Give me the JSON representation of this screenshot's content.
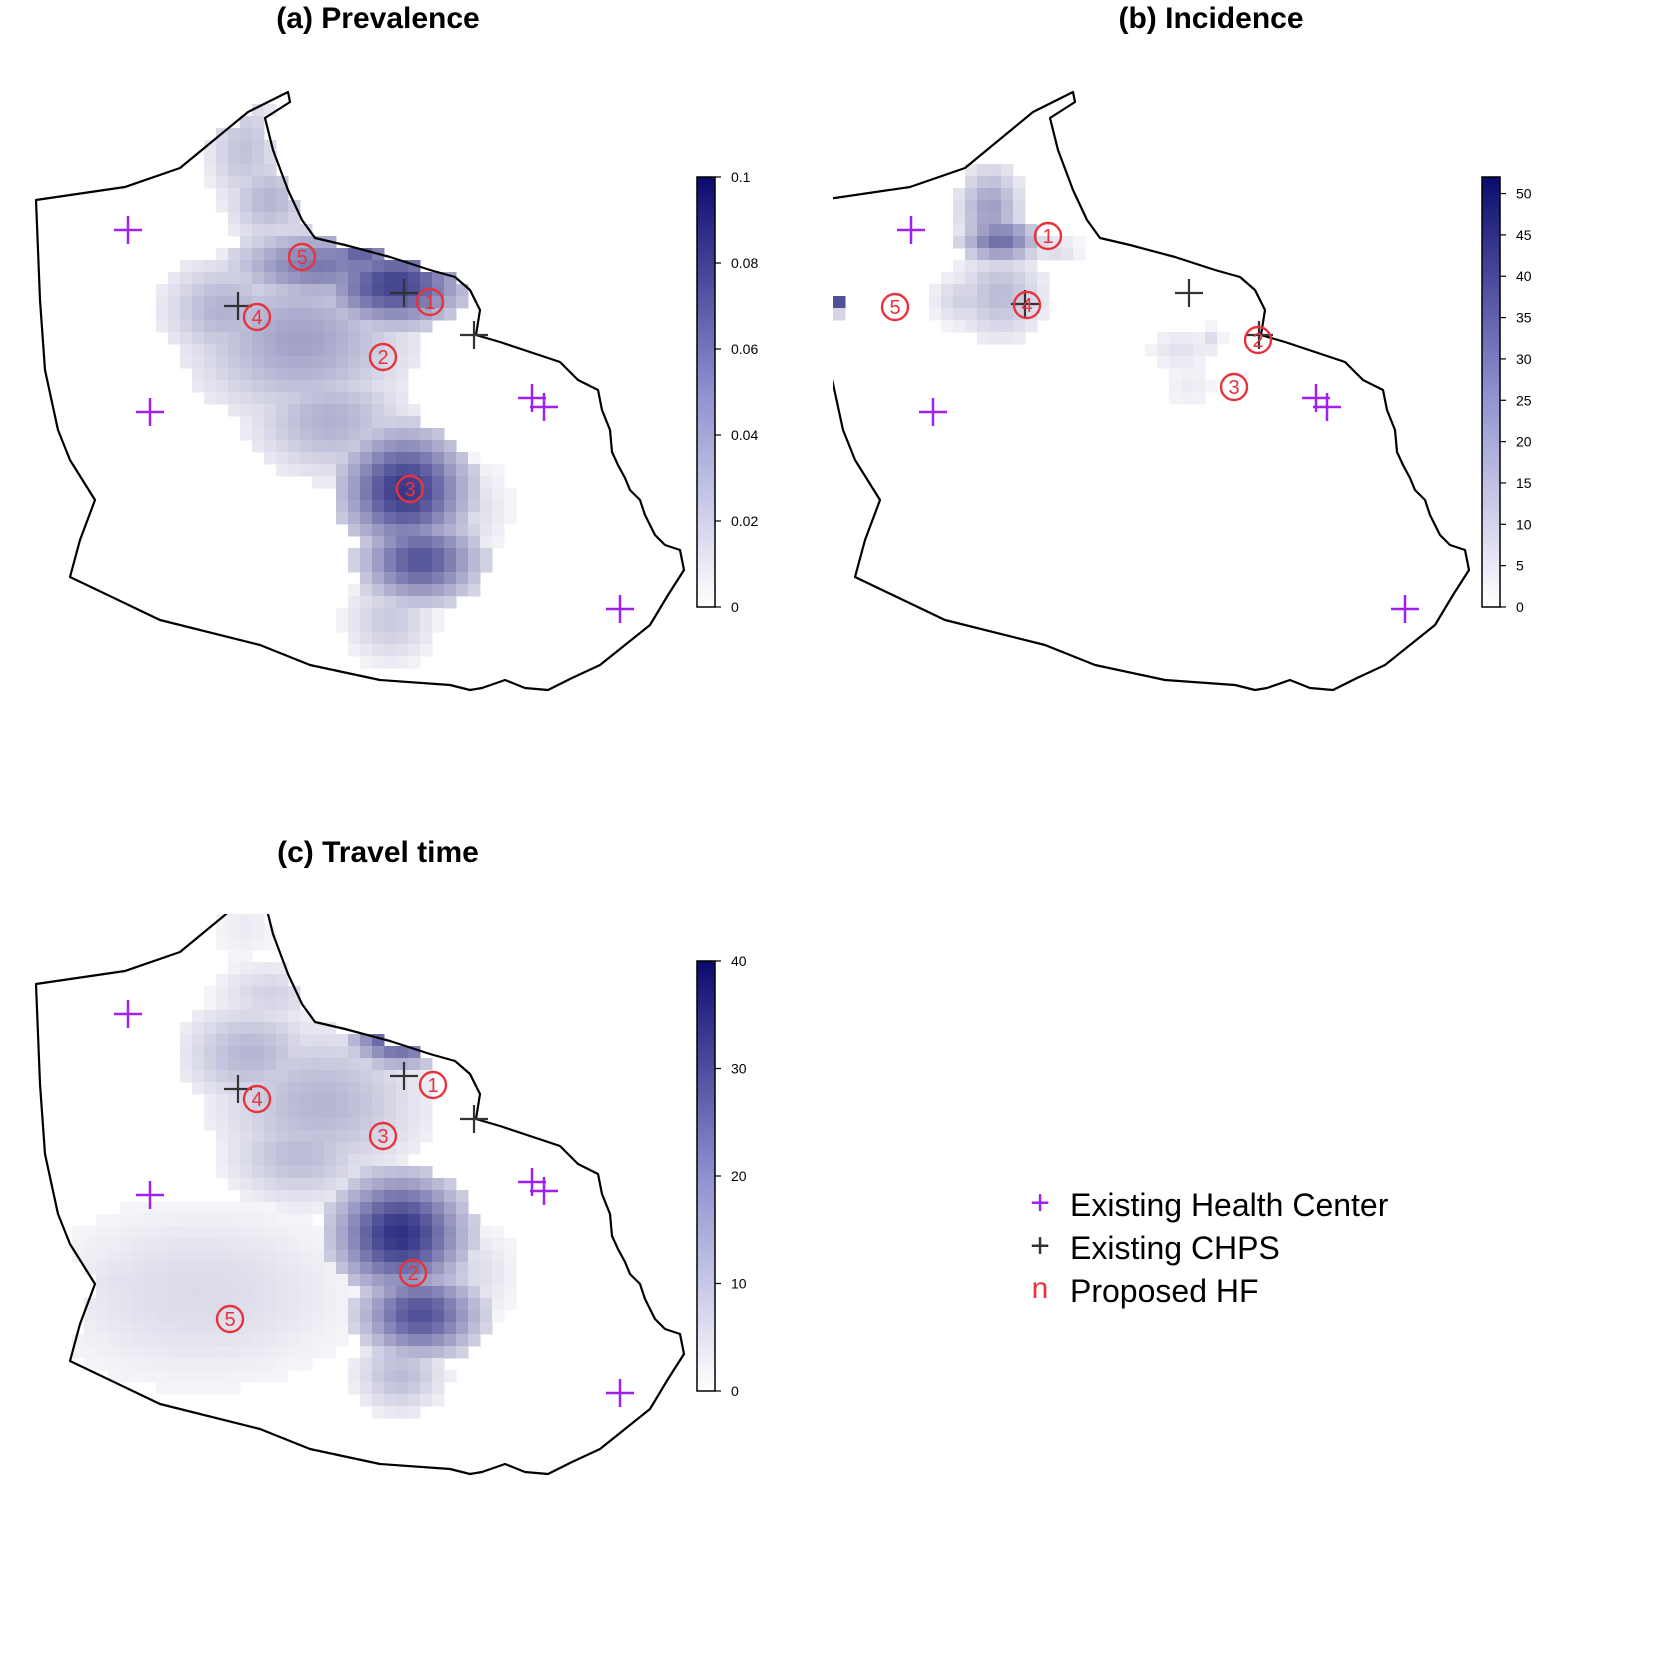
{
  "colors": {
    "health_center": "#a020f0",
    "chps": "#000000",
    "proposed": "#e8323c",
    "scale_low": "#ffffff",
    "scale_high": "#0b0b6e",
    "boundary": "#000000"
  },
  "panels": [
    {
      "key": "prevalence",
      "title": "(a) Prevalence",
      "colorbar": {
        "min": 0,
        "max": 0.1,
        "ticks": [
          "0.1",
          "0.08",
          "0.06",
          "0.04",
          "0.02",
          "0"
        ],
        "tick_values": [
          0.1,
          0.08,
          0.06,
          0.04,
          0.02,
          0
        ]
      },
      "proposed_labels": [
        "1",
        "2",
        "3",
        "4",
        "5"
      ]
    },
    {
      "key": "incidence",
      "title": "(b) Incidence",
      "colorbar": {
        "min": 0,
        "max": 52,
        "ticks": [
          "50",
          "45",
          "40",
          "35",
          "30",
          "25",
          "20",
          "15",
          "10",
          "5",
          "0"
        ],
        "tick_values": [
          50,
          45,
          40,
          35,
          30,
          25,
          20,
          15,
          10,
          5,
          0
        ]
      },
      "proposed_labels": [
        "1",
        "2",
        "3",
        "4",
        "5"
      ]
    },
    {
      "key": "travel",
      "title": "(c) Travel time",
      "colorbar": {
        "min": 0,
        "max": 40,
        "ticks": [
          "40",
          "30",
          "20",
          "10",
          "0"
        ],
        "tick_values": [
          40,
          30,
          20,
          10,
          0
        ]
      },
      "proposed_labels": [
        "1",
        "2",
        "3",
        "4",
        "5"
      ]
    }
  ],
  "legend": {
    "items": [
      {
        "symbol": "+",
        "label": "Existing Health Center",
        "color": "#a020f0"
      },
      {
        "symbol": "+",
        "label": "Existing CHPS",
        "color": "#000000"
      },
      {
        "symbol": "n",
        "label": "Proposed HF",
        "color": "#e8323c"
      }
    ]
  }
}
